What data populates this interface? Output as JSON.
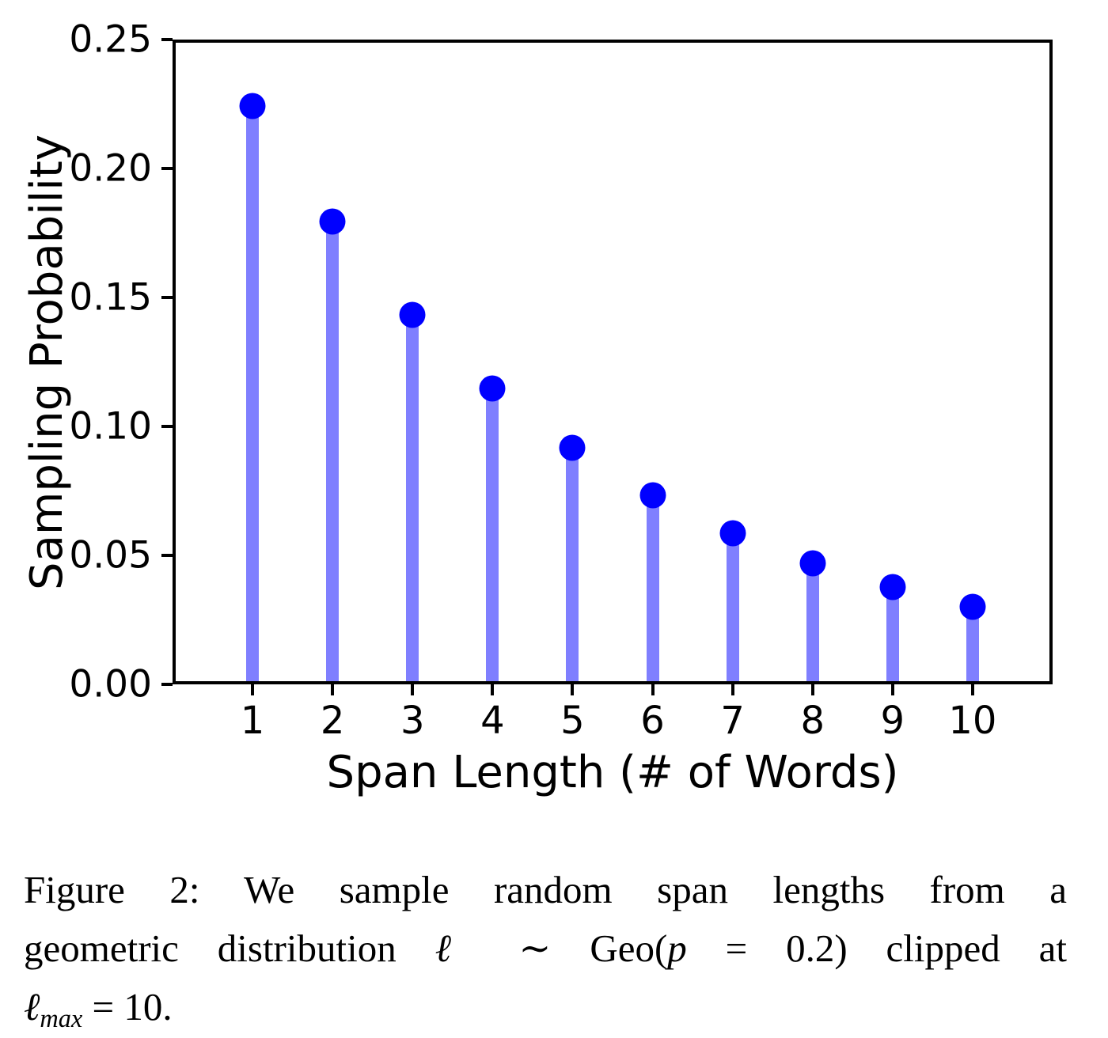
{
  "chart_data": {
    "type": "stem",
    "title": "",
    "xlabel": "Span Length (# of Words)",
    "ylabel": "Sampling Probability",
    "categories": [
      1,
      2,
      3,
      4,
      5,
      6,
      7,
      8,
      9,
      10
    ],
    "values": [
      0.2241,
      0.1793,
      0.1434,
      0.1147,
      0.0918,
      0.0734,
      0.0587,
      0.047,
      0.0376,
      0.0301
    ],
    "xlim": [
      0,
      11
    ],
    "ylim": [
      0,
      0.25
    ],
    "y_ticks": [
      0,
      0.05,
      0.1,
      0.15,
      0.2,
      0.25
    ],
    "y_tick_labels": [
      "0.00",
      "0.05",
      "0.10",
      "0.15",
      "0.20",
      "0.25"
    ],
    "x_tick_labels": [
      "1",
      "2",
      "3",
      "4",
      "5",
      "6",
      "7",
      "8",
      "9",
      "10"
    ],
    "grid": false,
    "legend": null,
    "stem_color": "#7f7fff",
    "marker_color": "#0000ff",
    "spine_color": "#000000"
  },
  "caption": {
    "line1": "Figure 2: We sample random span lengths from a",
    "line2_pre": "geometric distribution ",
    "line2_ell": "ℓ",
    "line2_mid": " ∼ Geo(",
    "line2_p": "p",
    "line2_post": " = 0.2) clipped at",
    "line3_ell": "ℓ",
    "line3_sub": "max",
    "line3_rest": " = 10."
  }
}
